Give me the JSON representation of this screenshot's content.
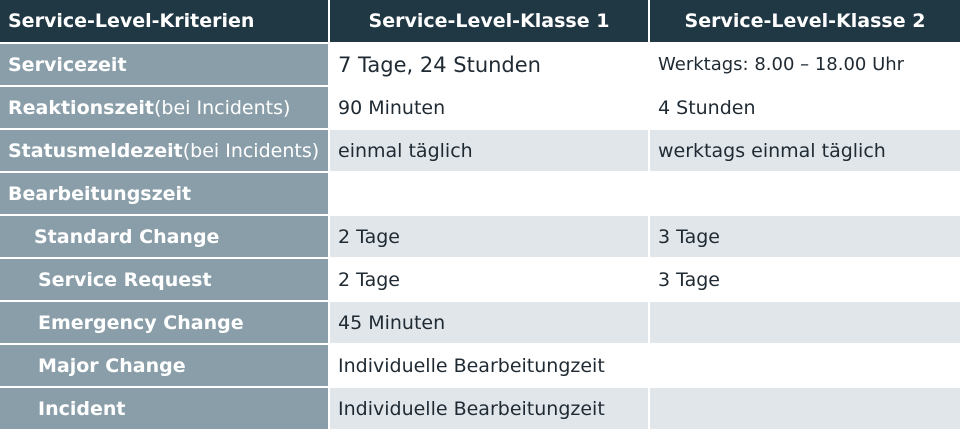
{
  "header": {
    "col0": "Service-Level-Kriterien",
    "col1": "Service-Level-Klasse 1",
    "col2": "Service-Level-Klasse 2"
  },
  "rows": [
    {
      "label": "Servicezeit",
      "suffix": "",
      "c1": "7 Tage, 24 Stunden",
      "c2": "Werktags: 8.00 – 18.00 Uhr"
    },
    {
      "label": "Reaktionszeit",
      "suffix": " (bei Incidents)",
      "c1": "90 Minuten",
      "c2": "4 Stunden"
    },
    {
      "label": "Statusmeldezeit",
      "suffix": " (bei Incidents)",
      "c1": "einmal täglich",
      "c2": "werktags einmal täglich"
    },
    {
      "label": "Bearbeitungszeit",
      "suffix": "",
      "c1": "",
      "c2": ""
    },
    {
      "label": "Standard Change",
      "suffix": "",
      "c1": "2 Tage",
      "c2": "3 Tage"
    },
    {
      "label": "Service Request",
      "suffix": "",
      "c1": "2 Tage",
      "c2": "3 Tage"
    },
    {
      "label": "Emergency Change",
      "suffix": "",
      "c1": "45 Minuten",
      "c2": ""
    },
    {
      "label": "Major Change",
      "suffix": "",
      "c1": "Individuelle Bearbeitungzeit",
      "c2": ""
    },
    {
      "label": "Incident",
      "suffix": "",
      "c1": "Individuelle Bearbeitungzeit",
      "c2": ""
    }
  ],
  "colors": {
    "header_bg": "#203744",
    "label_bg": "#8a9ea9",
    "row_alt_bg": "#e1e6eb"
  }
}
